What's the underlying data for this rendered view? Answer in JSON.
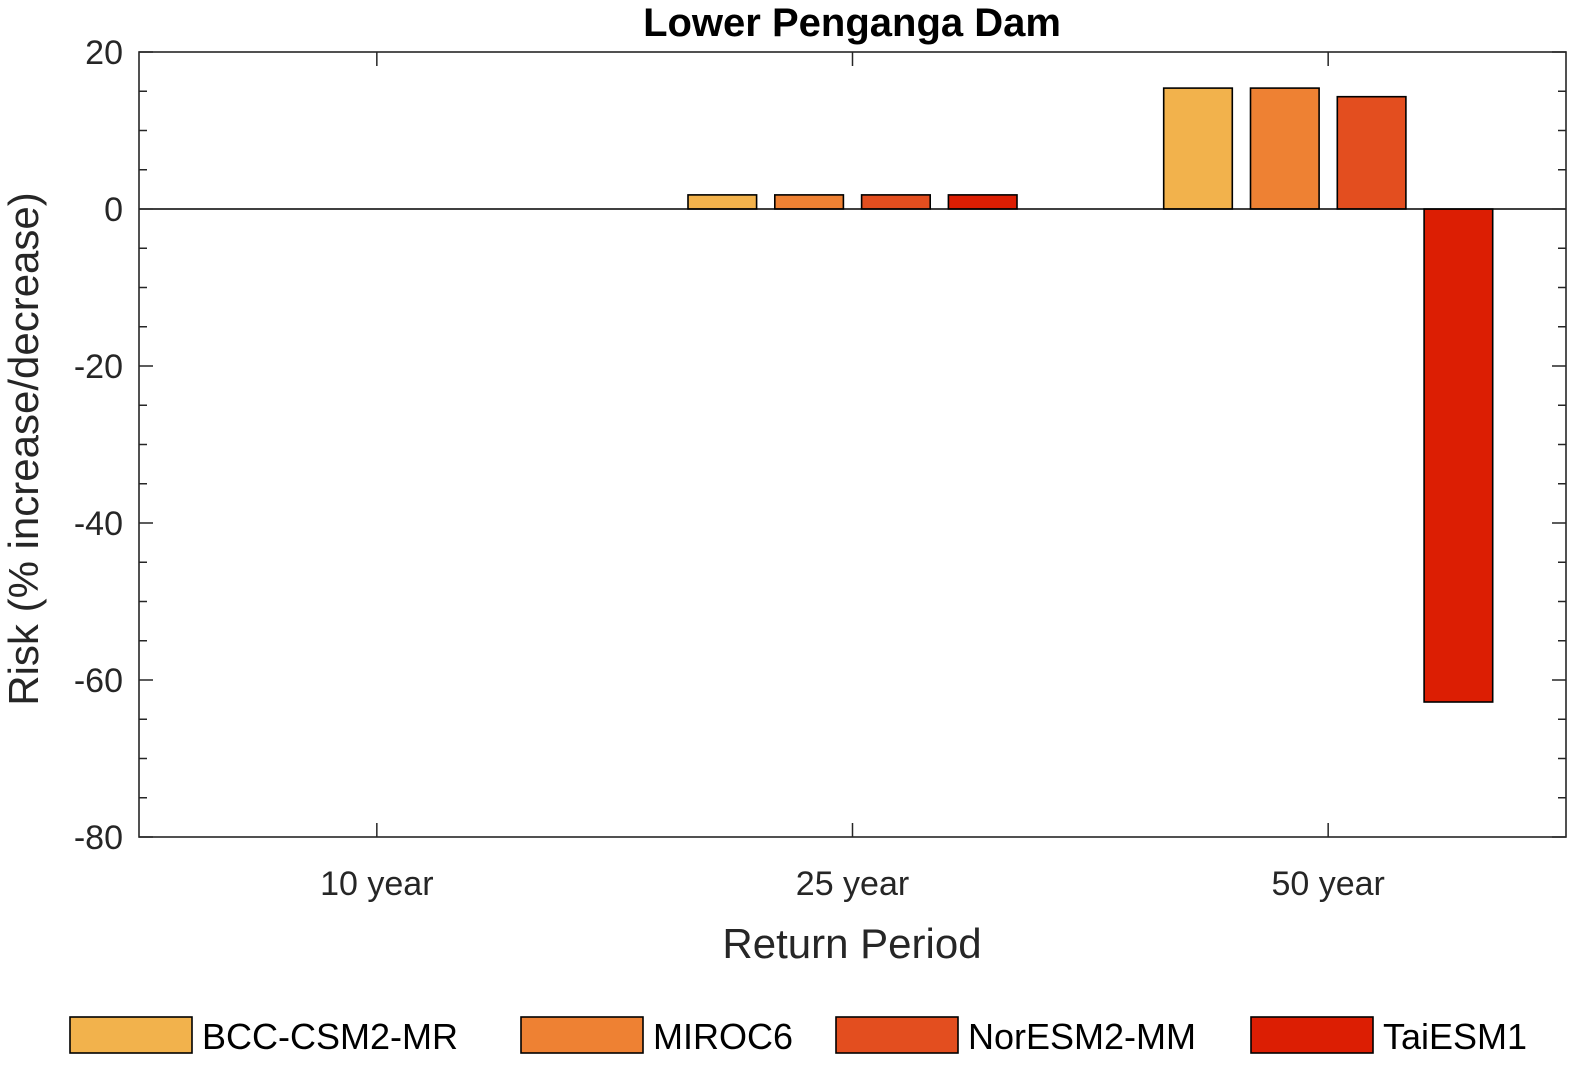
{
  "chart_data": {
    "type": "bar",
    "title": "Lower Penganga Dam",
    "xlabel": "Return Period",
    "ylabel": "Risk (% increase/decrease)",
    "categories": [
      "10 year",
      "25 year",
      "50 year"
    ],
    "ylim": [
      -80,
      20
    ],
    "yticks": [
      20,
      0,
      -20,
      -40,
      -60,
      -80
    ],
    "grid": false,
    "legend_position": "bottom",
    "series": [
      {
        "name": "BCC-CSM2-MR",
        "color": "#F2B24C",
        "values": [
          0,
          1.8,
          15.4
        ]
      },
      {
        "name": "MIROC6",
        "color": "#EE8133",
        "values": [
          0,
          1.8,
          15.4
        ]
      },
      {
        "name": "NorESM2-MM",
        "color": "#E34E1F",
        "values": [
          0,
          1.8,
          14.3
        ]
      },
      {
        "name": "TaiESM1",
        "color": "#DC1E03",
        "values": [
          0,
          1.8,
          -62.8
        ]
      }
    ]
  }
}
